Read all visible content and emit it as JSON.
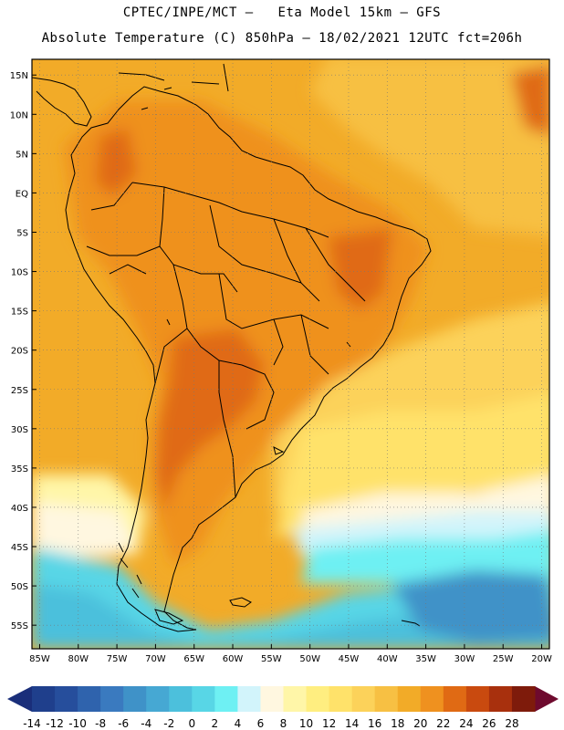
{
  "header": {
    "line1": "CPTEC/INPE/MCT –   Eta Model 15km – GFS",
    "line2": "Absolute Temperature (C) 850hPa – 18/02/2021 12UTC fct=206h"
  },
  "axes": {
    "lat_labels": [
      "15N",
      "10N",
      "5N",
      "EQ",
      "5S",
      "10S",
      "15S",
      "20S",
      "25S",
      "30S",
      "35S",
      "40S",
      "45S",
      "50S",
      "55S"
    ],
    "lon_labels": [
      "85W",
      "80W",
      "75W",
      "70W",
      "65W",
      "60W",
      "55W",
      "50W",
      "45W",
      "40W",
      "35W",
      "30W",
      "25W",
      "20W"
    ]
  },
  "colorbar": {
    "labels": [
      "-14",
      "-12",
      "-10",
      "-8",
      "-6",
      "-4",
      "-2",
      "0",
      "2",
      "4",
      "6",
      "8",
      "10",
      "12",
      "14",
      "16",
      "18",
      "20",
      "22",
      "24",
      "26",
      "28"
    ],
    "colors": [
      "#1f3f8c",
      "#264e9c",
      "#2f63ad",
      "#3a7abf",
      "#3f92c8",
      "#46a8d3",
      "#4cc0dc",
      "#58d6e6",
      "#6ef0f3",
      "#d2f4fb",
      "#fff7e0",
      "#fff6a8",
      "#ffee80",
      "#ffe26a",
      "#fcd25a",
      "#f7c043",
      "#f2ab28",
      "#ef911f",
      "#e06a14",
      "#c94a0f",
      "#a8300d",
      "#7e1b0b"
    ],
    "low_arrow_color": "#1a2e7a",
    "high_arrow_color": "#6e0a2e"
  },
  "map_colors": {
    "ocean_warm": "#f2ab28",
    "land_warm": "#ef911f",
    "land_hot": "#e06a14",
    "tropical_atlantic": "#f7c043",
    "subtropic": "#fcd25a",
    "midlat": "#ffe26a",
    "cool": "#ffee80",
    "pale": "#fff6a8",
    "cream": "#fff7e0",
    "ice": "#d2f4fb",
    "cyan": "#6ef0f3",
    "sky": "#58d6e6",
    "teal": "#4cc0dc",
    "blue": "#46a8d3",
    "deep_blue": "#3f92c8"
  }
}
